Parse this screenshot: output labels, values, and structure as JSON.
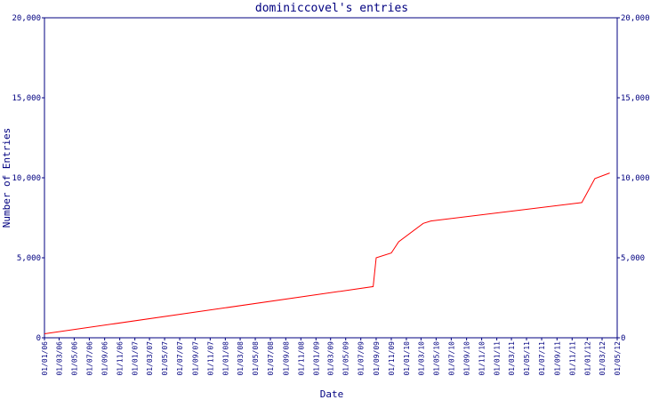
{
  "chart_data": {
    "type": "line",
    "title": "dominiccovel's entries",
    "x_label": "Date",
    "y_label": "Number of Entries",
    "x": [
      "01/01/06",
      "20/08/09",
      "01/09/09",
      "01/11/09",
      "01/12/09",
      "10/03/10",
      "10/04/10",
      "10/12/11",
      "01/02/12",
      "01/04/12"
    ],
    "series": [
      {
        "name": "Entries",
        "color": "#ff0000",
        "values": [
          250,
          3200,
          5000,
          5300,
          6000,
          7150,
          7300,
          8450,
          9950,
          10300
        ]
      }
    ],
    "xlim": [
      "01/01/06",
      "01/05/12"
    ],
    "xticks": [
      "01/01/06",
      "01/03/06",
      "01/05/06",
      "01/07/06",
      "01/09/06",
      "01/11/06",
      "01/01/07",
      "01/03/07",
      "01/05/07",
      "01/07/07",
      "01/09/07",
      "01/11/07",
      "01/01/08",
      "01/03/08",
      "01/05/08",
      "01/07/08",
      "01/09/08",
      "01/11/08",
      "01/01/09",
      "01/03/09",
      "01/05/09",
      "01/07/09",
      "01/09/09",
      "01/11/09",
      "01/01/10",
      "01/03/10",
      "01/05/10",
      "01/07/10",
      "01/09/10",
      "01/11/10",
      "01/01/11",
      "01/03/11",
      "01/05/11",
      "01/07/11",
      "01/09/11",
      "01/11/11",
      "01/01/12",
      "01/03/12",
      "01/05/12"
    ],
    "ylim": [
      0,
      20000
    ],
    "yticks": [
      0,
      {
        "value": 5000,
        "label": "5,000"
      },
      {
        "value": 10000,
        "label": "10,000"
      },
      {
        "value": 15000,
        "label": "15,000"
      },
      {
        "value": 20000,
        "label": "20,000"
      }
    ],
    "y2lim": [
      0,
      20000
    ],
    "y2ticks": [
      0,
      {
        "value": 5000,
        "label": "5,000"
      },
      {
        "value": 10000,
        "label": "10,000"
      },
      {
        "value": 15000,
        "label": "15,000"
      },
      {
        "value": 20000,
        "label": "20,000"
      }
    ]
  }
}
